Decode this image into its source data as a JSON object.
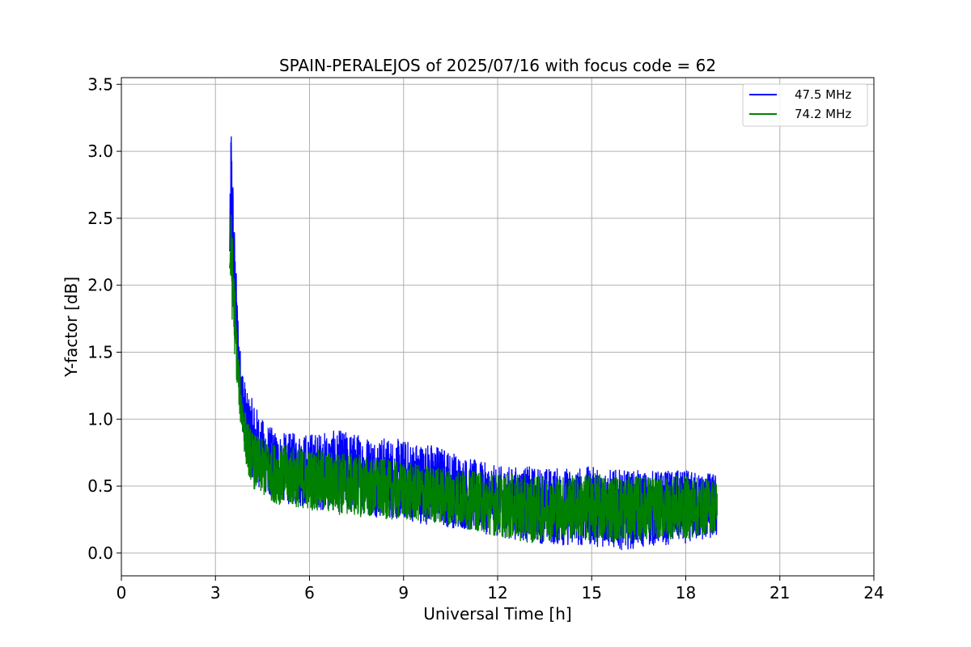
{
  "chart_data": {
    "type": "line",
    "title": "SPAIN-PERALEJOS of 2025/07/16 with focus code = 62",
    "xlabel": "Universal Time [h]",
    "ylabel": "Y-factor [dB]",
    "xlim": [
      0,
      24
    ],
    "ylim": [
      -0.17,
      3.55
    ],
    "xticks": [
      0,
      3,
      6,
      9,
      12,
      15,
      18,
      21,
      24
    ],
    "xtick_labels": [
      "0",
      "3",
      "6",
      "9",
      "12",
      "15",
      "18",
      "21",
      "24"
    ],
    "yticks": [
      0.0,
      0.5,
      1.0,
      1.5,
      2.0,
      2.5,
      3.0,
      3.5
    ],
    "ytick_labels": [
      "0.0",
      "0.5",
      "1.0",
      "1.5",
      "2.0",
      "2.5",
      "3.0",
      "3.5"
    ],
    "grid": true,
    "legend_position": "top-right",
    "series": [
      {
        "name": "47.5 MHz",
        "color": "#0000ff",
        "envelope_x": [
          3.45,
          3.5,
          3.6,
          3.7,
          3.8,
          4.0,
          4.2,
          4.5,
          5.0,
          6.0,
          7.0,
          8.0,
          9.0,
          10.0,
          11.0,
          12.0,
          13.0,
          14.0,
          15.0,
          16.0,
          17.0,
          18.0,
          19.0
        ],
        "envelope_upper": [
          2.3,
          3.38,
          2.5,
          1.9,
          1.5,
          1.2,
          1.15,
          1.0,
          0.9,
          0.9,
          0.92,
          0.88,
          0.85,
          0.82,
          0.72,
          0.65,
          0.65,
          0.64,
          0.65,
          0.62,
          0.62,
          0.62,
          0.6
        ],
        "envelope_lower": [
          2.2,
          2.0,
          1.6,
          1.3,
          1.05,
          0.7,
          0.55,
          0.45,
          0.38,
          0.33,
          0.3,
          0.27,
          0.24,
          0.2,
          0.17,
          0.12,
          0.08,
          0.05,
          0.05,
          0.02,
          0.05,
          0.07,
          0.1
        ]
      },
      {
        "name": "74.2 MHz",
        "color": "#008000",
        "envelope_x": [
          3.45,
          3.5,
          3.6,
          3.7,
          3.8,
          4.0,
          4.2,
          4.5,
          5.0,
          6.0,
          7.0,
          8.0,
          9.0,
          10.0,
          11.0,
          12.0,
          13.0,
          14.0,
          15.0,
          16.0,
          17.0,
          18.0,
          19.0
        ],
        "envelope_upper": [
          2.2,
          2.57,
          2.1,
          1.6,
          1.3,
          1.0,
          0.9,
          0.85,
          0.82,
          0.78,
          0.76,
          0.72,
          0.68,
          0.65,
          0.62,
          0.6,
          0.58,
          0.58,
          0.6,
          0.58,
          0.58,
          0.58,
          0.55
        ],
        "envelope_lower": [
          2.1,
          1.85,
          1.5,
          1.2,
          0.95,
          0.62,
          0.48,
          0.42,
          0.36,
          0.32,
          0.28,
          0.26,
          0.24,
          0.22,
          0.18,
          0.12,
          0.07,
          0.1,
          0.08,
          0.08,
          0.1,
          0.1,
          0.15
        ]
      }
    ]
  }
}
